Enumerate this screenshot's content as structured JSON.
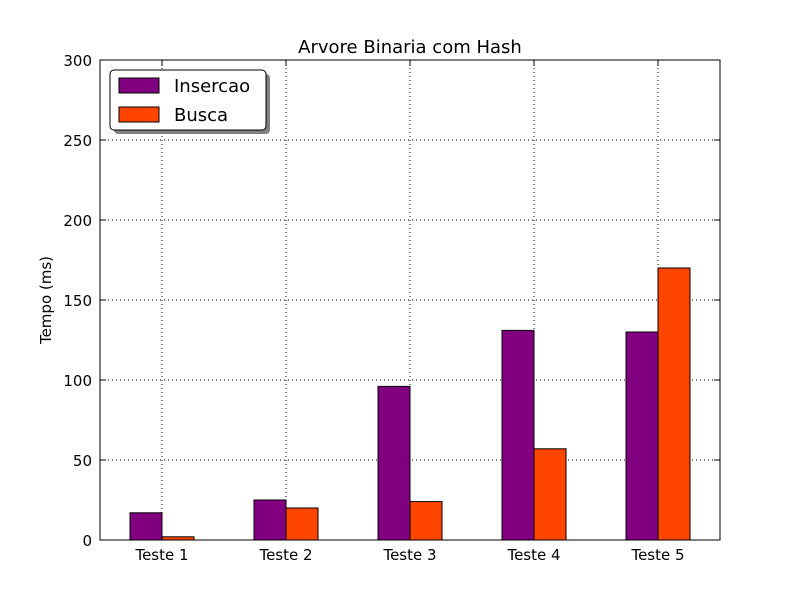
{
  "chart_data": {
    "type": "bar",
    "title": "Arvore Binaria com Hash",
    "xlabel": "",
    "ylabel": "Tempo (ms)",
    "ylim": [
      0,
      300
    ],
    "yticks": [
      0,
      50,
      100,
      150,
      200,
      250,
      300
    ],
    "grid": true,
    "legend_position": "top-left",
    "categories": [
      "Teste 1",
      "Teste 2",
      "Teste 3",
      "Teste 4",
      "Teste 5"
    ],
    "series": [
      {
        "name": "Insercao",
        "color": "#800080",
        "values": [
          17,
          25,
          96,
          131,
          130
        ]
      },
      {
        "name": "Busca",
        "color": "#ff4500",
        "values": [
          2,
          20,
          24,
          57,
          170
        ]
      }
    ]
  }
}
